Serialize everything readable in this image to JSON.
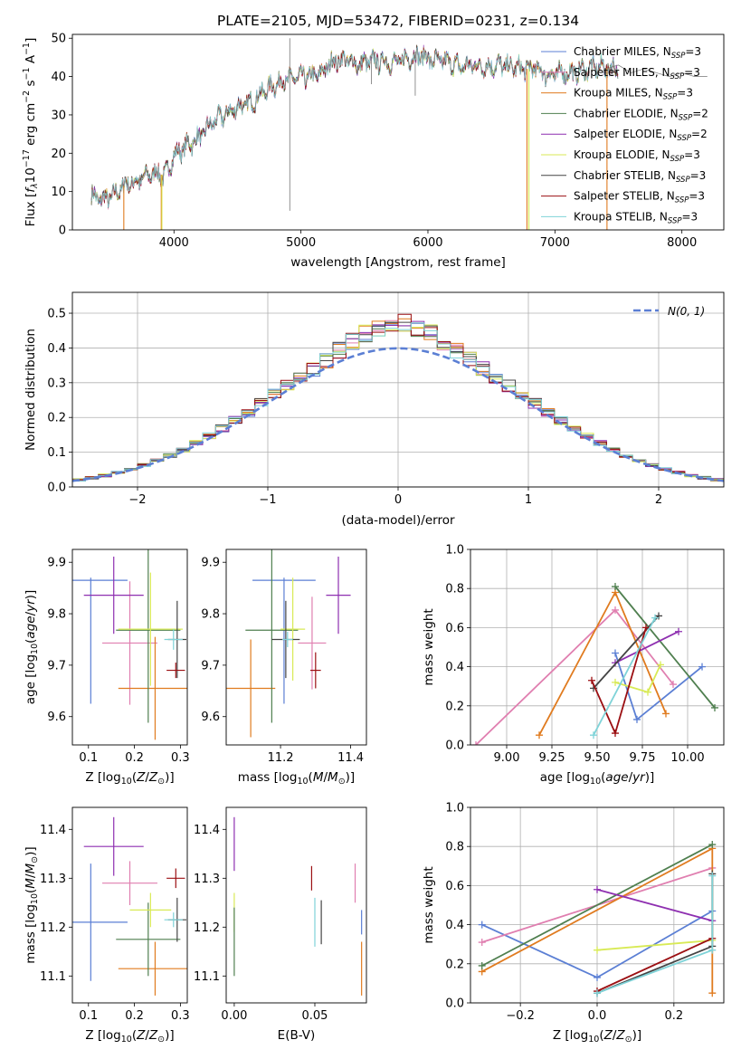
{
  "figure": {
    "title": "PLATE=2105, MJD=53472, FIBERID=0231, z=0.134"
  },
  "colors": {
    "Chabrier MILES": "#5b7fd4",
    "Salpeter MILES": "#e07fb0",
    "Kroupa MILES": "#e07b1f",
    "Chabrier ELODIE": "#4f7f4f",
    "Salpeter ELODIE": "#8e2fb0",
    "Kroupa ELODIE": "#d8ea55",
    "Chabrier STELIB": "#444444",
    "Salpeter STELIB": "#9b0f12",
    "Kroupa STELIB": "#7fd3d8"
  },
  "chart_data": [
    {
      "id": "spectrum",
      "type": "line",
      "title": "PLATE=2105, MJD=53472, FIBERID=0231, z=0.134",
      "xlabel": "wavelength [Angstrom, rest frame]",
      "ylabel": "Flux [f_λ 10^-17 erg cm^-2 s^-1 A^-1]",
      "xlim": [
        3200,
        8330
      ],
      "ylim": [
        0,
        51
      ],
      "xticks": [
        "4000",
        "5000",
        "6000",
        "7000",
        "8000"
      ],
      "yticks": [
        "0",
        "10",
        "20",
        "30",
        "40",
        "50"
      ],
      "grid": false,
      "legend_position": "top-right",
      "legend": [
        {
          "name": "Chabrier MILES",
          "label": "Chabrier MILES, N",
          "n": "=3"
        },
        {
          "name": "Salpeter MILES",
          "label": "Salpeter MILES, N",
          "n": "=3"
        },
        {
          "name": "Kroupa MILES",
          "label": "Kroupa MILES, N",
          "n": "=3"
        },
        {
          "name": "Chabrier ELODIE",
          "label": "Chabrier ELODIE, N",
          "n": "=2"
        },
        {
          "name": "Salpeter ELODIE",
          "label": "Salpeter ELODIE, N",
          "n": "=2"
        },
        {
          "name": "Kroupa ELODIE",
          "label": "Kroupa ELODIE, N",
          "n": "=3"
        },
        {
          "name": "Chabrier STELIB",
          "label": "Chabrier STELIB, N",
          "n": "=3"
        },
        {
          "name": "Salpeter STELIB",
          "label": "Salpeter STELIB, N",
          "n": "=3"
        },
        {
          "name": "Kroupa STELIB",
          "label": "Kroupa STELIB, N",
          "n": "=3"
        }
      ],
      "legend_subscript": "SSP",
      "envelope": {
        "x": [
          3350,
          3420,
          3500,
          3560,
          3620,
          3700,
          3780,
          3860,
          3930,
          4000,
          4100,
          4200,
          4300,
          4400,
          4500,
          4600,
          4700,
          4800,
          4860,
          4950,
          5050,
          5150,
          5250,
          5350,
          5450,
          5550,
          5650,
          5750,
          5850,
          5950,
          6050,
          6150,
          6250,
          6350,
          6450,
          6550,
          6650,
          6750,
          6850,
          6950,
          7050,
          7150,
          7250,
          7350,
          7450,
          7500
        ],
        "y": [
          9,
          8,
          8.5,
          10,
          12,
          12.5,
          14,
          15,
          14,
          19.5,
          22,
          24,
          28,
          30,
          32,
          33,
          36,
          38,
          39,
          39.5,
          40,
          40.5,
          44,
          44.5,
          43,
          44,
          44,
          43.5,
          45,
          45.5,
          44,
          44,
          42.5,
          43,
          42.5,
          43,
          42.5,
          42,
          42,
          40.5,
          41,
          41,
          42,
          42.5,
          42,
          43
        ]
      },
      "legend_spectrum_x": [
        7400,
        7500,
        7600,
        7700,
        7800,
        7900,
        8000,
        8100,
        8200
      ],
      "legend_spectrum_y": [
        42,
        43,
        41,
        42,
        41,
        40,
        41,
        40,
        40
      ],
      "spikes": [
        {
          "x": 4912,
          "y0": 5,
          "y1": 50
        },
        {
          "x": 5900,
          "y0": 35,
          "y1": 46.5
        },
        {
          "x": 5555,
          "y0": 38,
          "y1": 45
        }
      ],
      "dropouts": [
        {
          "series": "Kroupa MILES",
          "x": 3605,
          "to": 0
        },
        {
          "series": "Kroupa MILES",
          "x": 3900,
          "to": 0
        },
        {
          "series": "Kroupa MILES",
          "x": 6780,
          "to": 0
        },
        {
          "series": "Kroupa MILES",
          "x": 7410,
          "to": 0
        },
        {
          "series": "Kroupa ELODIE",
          "x": 3905,
          "to": 0
        },
        {
          "series": "Kroupa ELODIE",
          "x": 6795,
          "to": 0
        }
      ]
    },
    {
      "id": "residuals",
      "type": "histogram",
      "xlabel": "(data-model)/error",
      "ylabel": "Normed distribution",
      "xlim": [
        -2.5,
        2.5
      ],
      "ylim": [
        0,
        0.56
      ],
      "xticks": [
        "−2",
        "−1",
        "0",
        "1",
        "2"
      ],
      "yticks": [
        "0.0",
        "0.1",
        "0.2",
        "0.3",
        "0.4",
        "0.5"
      ],
      "grid": true,
      "legend_position": "top-right",
      "normal_curve": {
        "label": "N(0, 1)",
        "mean": 0,
        "sigma": 1
      },
      "bins": {
        "start": -2.5,
        "width": 0.1,
        "count": 50
      }
    },
    {
      "id": "age-vs-Z",
      "type": "errorbar",
      "xlabel": "Z [log10(Z/Z_sun)]",
      "ylabel": "age [log10(age/yr)]",
      "xlim": [
        0.065,
        0.315
      ],
      "ylim": [
        9.545,
        9.925
      ],
      "xticks": [
        "0.1",
        "0.2",
        "0.3"
      ],
      "yticks": [
        "9.6",
        "9.7",
        "9.8",
        "9.9"
      ],
      "grid": false,
      "points": [
        {
          "series": "Chabrier MILES",
          "x": 0.105,
          "y": 9.865,
          "xerr": 0.08,
          "yerr": [
            0.24,
            0.005
          ]
        },
        {
          "series": "Salpeter MILES",
          "x": 0.19,
          "y": 9.743,
          "xerr": 0.06,
          "yerr": 0.12
        },
        {
          "series": "Kroupa MILES",
          "x": 0.245,
          "y": 9.655,
          "xerr": 0.08,
          "yerr": 0.1
        },
        {
          "series": "Chabrier ELODIE",
          "x": 0.23,
          "y": 9.768,
          "xerr": 0.07,
          "yerr": 0.18
        },
        {
          "series": "Salpeter ELODIE",
          "x": 0.155,
          "y": 9.836,
          "xerr": 0.065,
          "yerr": 0.075
        },
        {
          "series": "Kroupa ELODIE",
          "x": 0.235,
          "y": 9.77,
          "xerr": 0.07,
          "yerr": 0.11
        },
        {
          "series": "Chabrier STELIB",
          "x": 0.293,
          "y": 9.75,
          "xerr": 0.02,
          "yerr": 0.075
        },
        {
          "series": "Salpeter STELIB",
          "x": 0.29,
          "y": 9.69,
          "xerr": 0.02,
          "yerr": 0.015
        },
        {
          "series": "Kroupa STELIB",
          "x": 0.285,
          "y": 9.75,
          "xerr": 0.02,
          "yerr": 0.02
        }
      ]
    },
    {
      "id": "age-vs-mass",
      "type": "errorbar",
      "xlabel": "mass [log10(M/M_sun)]",
      "ylabel": "",
      "xlim": [
        11.045,
        11.445
      ],
      "ylim": [
        9.545,
        9.925
      ],
      "xticks": [
        "11.2",
        "11.4"
      ],
      "yticks": [
        "9.6",
        "9.7",
        "9.8",
        "9.9"
      ],
      "grid": false,
      "points": [
        {
          "series": "Chabrier MILES",
          "x": 11.21,
          "y": 9.865,
          "xerr": 0.09,
          "yerr": [
            0.24,
            0.005
          ]
        },
        {
          "series": "Salpeter MILES",
          "x": 11.29,
          "y": 9.743,
          "xerr": 0.04,
          "yerr": 0.09
        },
        {
          "series": "Kroupa MILES",
          "x": 11.115,
          "y": 9.655,
          "xerr": 0.07,
          "yerr": 0.095
        },
        {
          "series": "Chabrier ELODIE",
          "x": 11.175,
          "y": 9.768,
          "xerr": 0.075,
          "yerr": 0.18
        },
        {
          "series": "Salpeter ELODIE",
          "x": 11.365,
          "y": 9.836,
          "xerr": 0.035,
          "yerr": 0.075
        },
        {
          "series": "Kroupa ELODIE",
          "x": 11.235,
          "y": 9.77,
          "xerr": 0.035,
          "yerr": 0.1
        },
        {
          "series": "Chabrier STELIB",
          "x": 11.215,
          "y": 9.75,
          "xerr": 0.04,
          "yerr": 0.075
        },
        {
          "series": "Salpeter STELIB",
          "x": 11.3,
          "y": 9.69,
          "xerr": 0.015,
          "yerr": 0.035
        },
        {
          "series": "Kroupa STELIB",
          "x": 11.22,
          "y": 9.75,
          "xerr": 0.015,
          "yerr": 0.015
        }
      ]
    },
    {
      "id": "weight-vs-age",
      "type": "line",
      "xlabel": "age [log10(age/yr)]",
      "ylabel": "mass weight",
      "xlim": [
        8.8,
        10.2
      ],
      "ylim": [
        0,
        1
      ],
      "xticks": [
        "9.00",
        "9.25",
        "9.50",
        "9.75",
        "10.00"
      ],
      "yticks": [
        "0.0",
        "0.2",
        "0.4",
        "0.6",
        "0.8",
        "1.0"
      ],
      "grid": true,
      "series": [
        {
          "name": "Chabrier MILES",
          "x": [
            9.6,
            9.72,
            10.08
          ],
          "y": [
            0.47,
            0.13,
            0.4
          ]
        },
        {
          "name": "Salpeter MILES",
          "x": [
            8.83,
            9.6,
            9.92
          ],
          "y": [
            0.0,
            0.69,
            0.31
          ]
        },
        {
          "name": "Kroupa MILES",
          "x": [
            9.18,
            9.6,
            9.88
          ],
          "y": [
            0.05,
            0.78,
            0.16
          ]
        },
        {
          "name": "Chabrier ELODIE",
          "x": [
            9.6,
            10.15
          ],
          "y": [
            0.81,
            0.19
          ]
        },
        {
          "name": "Salpeter ELODIE",
          "x": [
            9.6,
            9.95
          ],
          "y": [
            0.42,
            0.58
          ]
        },
        {
          "name": "Kroupa ELODIE",
          "x": [
            9.6,
            9.78,
            9.85
          ],
          "y": [
            0.32,
            0.27,
            0.41
          ]
        },
        {
          "name": "Chabrier STELIB",
          "x": [
            9.48,
            9.84
          ],
          "y": [
            0.29,
            0.66
          ]
        },
        {
          "name": "Salpeter STELIB",
          "x": [
            9.47,
            9.6,
            9.77
          ],
          "y": [
            0.33,
            0.06,
            0.6
          ]
        },
        {
          "name": "Kroupa STELIB",
          "x": [
            9.48,
            9.82
          ],
          "y": [
            0.05,
            0.65
          ]
        }
      ]
    },
    {
      "id": "mass-vs-Z",
      "type": "errorbar",
      "xlabel": "Z [log10(Z/Z_sun)]",
      "ylabel": "mass [log10(M/M_sun)]",
      "xlim": [
        0.065,
        0.315
      ],
      "ylim": [
        11.045,
        11.445
      ],
      "xticks": [
        "0.1",
        "0.2",
        "0.3"
      ],
      "yticks": [
        "11.1",
        "11.2",
        "11.3",
        "11.4"
      ],
      "grid": false,
      "points": [
        {
          "series": "Chabrier MILES",
          "x": 0.105,
          "y": 11.21,
          "xerr": 0.08,
          "yerr": 0.12
        },
        {
          "series": "Salpeter MILES",
          "x": 0.19,
          "y": 11.29,
          "xerr": 0.06,
          "yerr": 0.045
        },
        {
          "series": "Kroupa MILES",
          "x": 0.245,
          "y": 11.115,
          "xerr": 0.08,
          "yerr": 0.055
        },
        {
          "series": "Chabrier ELODIE",
          "x": 0.23,
          "y": 11.175,
          "xerr": 0.07,
          "yerr": 0.075
        },
        {
          "series": "Salpeter ELODIE",
          "x": 0.155,
          "y": 11.365,
          "xerr": 0.065,
          "yerr": 0.06
        },
        {
          "series": "Kroupa ELODIE",
          "x": 0.235,
          "y": 11.235,
          "xerr": 0.045,
          "yerr": 0.035
        },
        {
          "series": "Chabrier STELIB",
          "x": 0.293,
          "y": 11.215,
          "xerr": 0.02,
          "yerr": 0.045
        },
        {
          "series": "Salpeter STELIB",
          "x": 0.29,
          "y": 11.3,
          "xerr": 0.02,
          "yerr": 0.02
        },
        {
          "series": "Kroupa STELIB",
          "x": 0.285,
          "y": 11.215,
          "xerr": 0.02,
          "yerr": 0.015
        }
      ]
    },
    {
      "id": "mass-vs-ebv",
      "type": "errorbar",
      "xlabel": "E(B-V)",
      "ylabel": "",
      "xlim": [
        -0.005,
        0.082
      ],
      "ylim": [
        11.045,
        11.445
      ],
      "xticks": [
        "0.00",
        "0.05"
      ],
      "yticks": [
        "11.1",
        "11.2",
        "11.3",
        "11.4"
      ],
      "grid": false,
      "points": [
        {
          "series": "Salpeter ELODIE",
          "x": 0.0,
          "y": 11.37,
          "xerr": 0,
          "yerr": 0.055
        },
        {
          "series": "Kroupa ELODIE",
          "x": 0.0,
          "y": 11.23,
          "xerr": 0,
          "yerr": 0.04
        },
        {
          "series": "Chabrier ELODIE",
          "x": 0.0,
          "y": 11.17,
          "xerr": 0,
          "yerr": 0.07
        },
        {
          "series": "Salpeter STELIB",
          "x": 0.048,
          "y": 11.3,
          "xerr": 0,
          "yerr": 0.025
        },
        {
          "series": "Kroupa STELIB",
          "x": 0.05,
          "y": 11.21,
          "xerr": 0,
          "yerr": 0.05
        },
        {
          "series": "Chabrier STELIB",
          "x": 0.054,
          "y": 11.21,
          "xerr": 0,
          "yerr": 0.045
        },
        {
          "series": "Salpeter MILES",
          "x": 0.075,
          "y": 11.29,
          "xerr": 0,
          "yerr": 0.04
        },
        {
          "series": "Chabrier MILES",
          "x": 0.079,
          "y": 11.21,
          "xerr": 0,
          "yerr": 0.025
        },
        {
          "series": "Kroupa MILES",
          "x": 0.079,
          "y": 11.115,
          "xerr": 0,
          "yerr": 0.055
        }
      ]
    },
    {
      "id": "weight-vs-Z",
      "type": "line",
      "xlabel": "Z [log10(Z/Z_sun)]",
      "ylabel": "mass weight",
      "xlim": [
        -0.33,
        0.33
      ],
      "ylim": [
        0,
        1
      ],
      "xticks": [
        "−0.2",
        "0.0",
        "0.2"
      ],
      "yticks": [
        "0.0",
        "0.2",
        "0.4",
        "0.6",
        "0.8",
        "1.0"
      ],
      "grid": true,
      "series": [
        {
          "name": "Chabrier MILES",
          "x": [
            -0.3,
            0.0,
            0.3
          ],
          "y": [
            0.4,
            0.13,
            0.47
          ]
        },
        {
          "name": "Salpeter MILES",
          "x": [
            -0.3,
            0.3
          ],
          "y": [
            0.31,
            0.69
          ]
        },
        {
          "name": "Kroupa MILES",
          "x": [
            -0.3,
            0.3,
            0.3
          ],
          "y": [
            0.16,
            0.79,
            0.05
          ]
        },
        {
          "name": "Chabrier ELODIE",
          "x": [
            -0.3,
            0.3
          ],
          "y": [
            0.19,
            0.81
          ]
        },
        {
          "name": "Salpeter ELODIE",
          "x": [
            0.0,
            0.3
          ],
          "y": [
            0.58,
            0.42
          ]
        },
        {
          "name": "Kroupa ELODIE",
          "x": [
            0.0,
            0.3
          ],
          "y": [
            0.27,
            0.32
          ]
        },
        {
          "name": "Chabrier STELIB",
          "x": [
            0.0,
            0.3,
            0.3
          ],
          "y": [
            0.05,
            0.29,
            0.66
          ]
        },
        {
          "name": "Salpeter STELIB",
          "x": [
            0.0,
            0.3
          ],
          "y": [
            0.06,
            0.33
          ]
        },
        {
          "name": "Kroupa STELIB",
          "x": [
            0.0,
            0.3,
            0.3
          ],
          "y": [
            0.05,
            0.27,
            0.65
          ]
        }
      ]
    }
  ]
}
